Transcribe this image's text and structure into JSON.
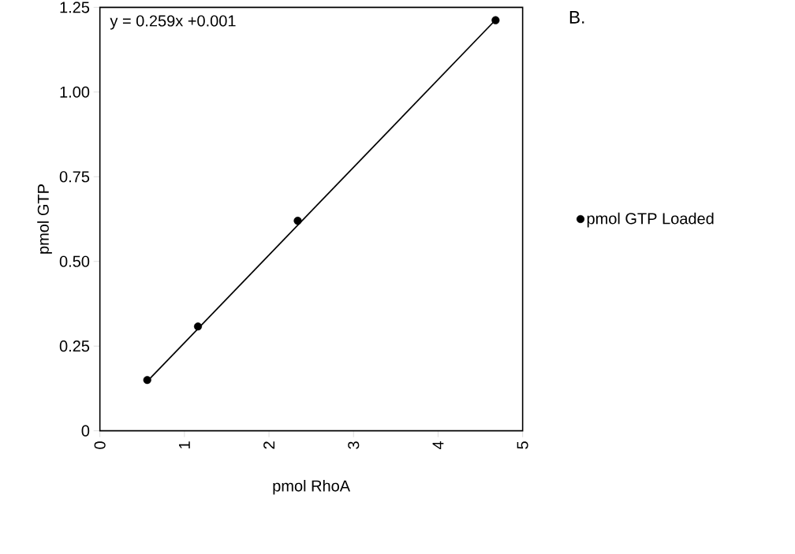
{
  "chart_data": {
    "type": "scatter",
    "xlabel": "pmol RhoA",
    "ylabel": "pmol GTP",
    "xlim": [
      0,
      5
    ],
    "xticks": [
      0,
      1,
      2,
      3,
      4,
      5
    ],
    "ylim": [
      0,
      1.25
    ],
    "yticks": [
      0,
      0.25,
      {
        "value": 0.5,
        "label": "0.50"
      },
      0.75,
      {
        "value": 1,
        "label": "1.00"
      },
      1.25
    ],
    "x": [
      0.56,
      1.16,
      2.34,
      4.68
    ],
    "series": [
      {
        "name": "pmol GTP Loaded",
        "color": "#000000",
        "values": [
          0.15,
          0.308,
          0.62,
          1.212
        ],
        "marker": "circle"
      },
      {
        "type": "line",
        "color": "#000000",
        "x": [
          0.56,
          4.68
        ],
        "values": [
          0.146,
          1.213
        ],
        "marker": "none",
        "line_style": "solid"
      }
    ],
    "annotations": [
      "y = 0.259x +0.001",
      "B."
    ],
    "legend": "right",
    "grid": false
  }
}
